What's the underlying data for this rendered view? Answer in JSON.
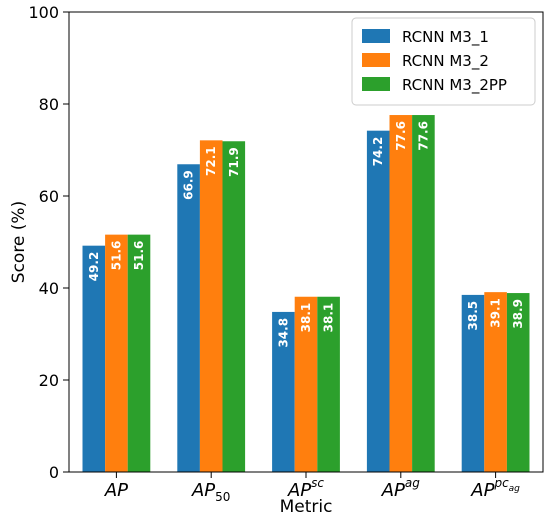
{
  "chart_data": {
    "type": "bar",
    "title": "",
    "xlabel": "Metric",
    "ylabel": "Score (%)",
    "ylim": [
      0,
      100
    ],
    "yticks": [
      0,
      20,
      40,
      60,
      80,
      100
    ],
    "categories": [
      "AP",
      "AP50",
      "APsc",
      "APag",
      "APpcag"
    ],
    "category_labels": [
      {
        "main": "AP",
        "sub": "",
        "sup": "",
        "supsub": ""
      },
      {
        "main": "AP",
        "sub": "50",
        "sup": "",
        "supsub": ""
      },
      {
        "main": "AP",
        "sub": "",
        "sup": "sc",
        "supsub": ""
      },
      {
        "main": "AP",
        "sub": "",
        "sup": "ag",
        "supsub": ""
      },
      {
        "main": "AP",
        "sub": "",
        "sup": "pc",
        "supsub": "ag"
      }
    ],
    "series": [
      {
        "name": "RCNN M3_1",
        "color": "#1f77b4",
        "values": [
          49.2,
          66.9,
          34.8,
          74.2,
          38.5
        ]
      },
      {
        "name": "RCNN M3_2",
        "color": "#ff7f0e",
        "values": [
          51.6,
          72.1,
          38.1,
          77.6,
          39.1
        ]
      },
      {
        "name": "RCNN M3_2PP",
        "color": "#2ca02c",
        "values": [
          51.6,
          71.9,
          38.1,
          77.6,
          38.9
        ]
      }
    ],
    "legend_position": "top-right",
    "grid": false
  }
}
